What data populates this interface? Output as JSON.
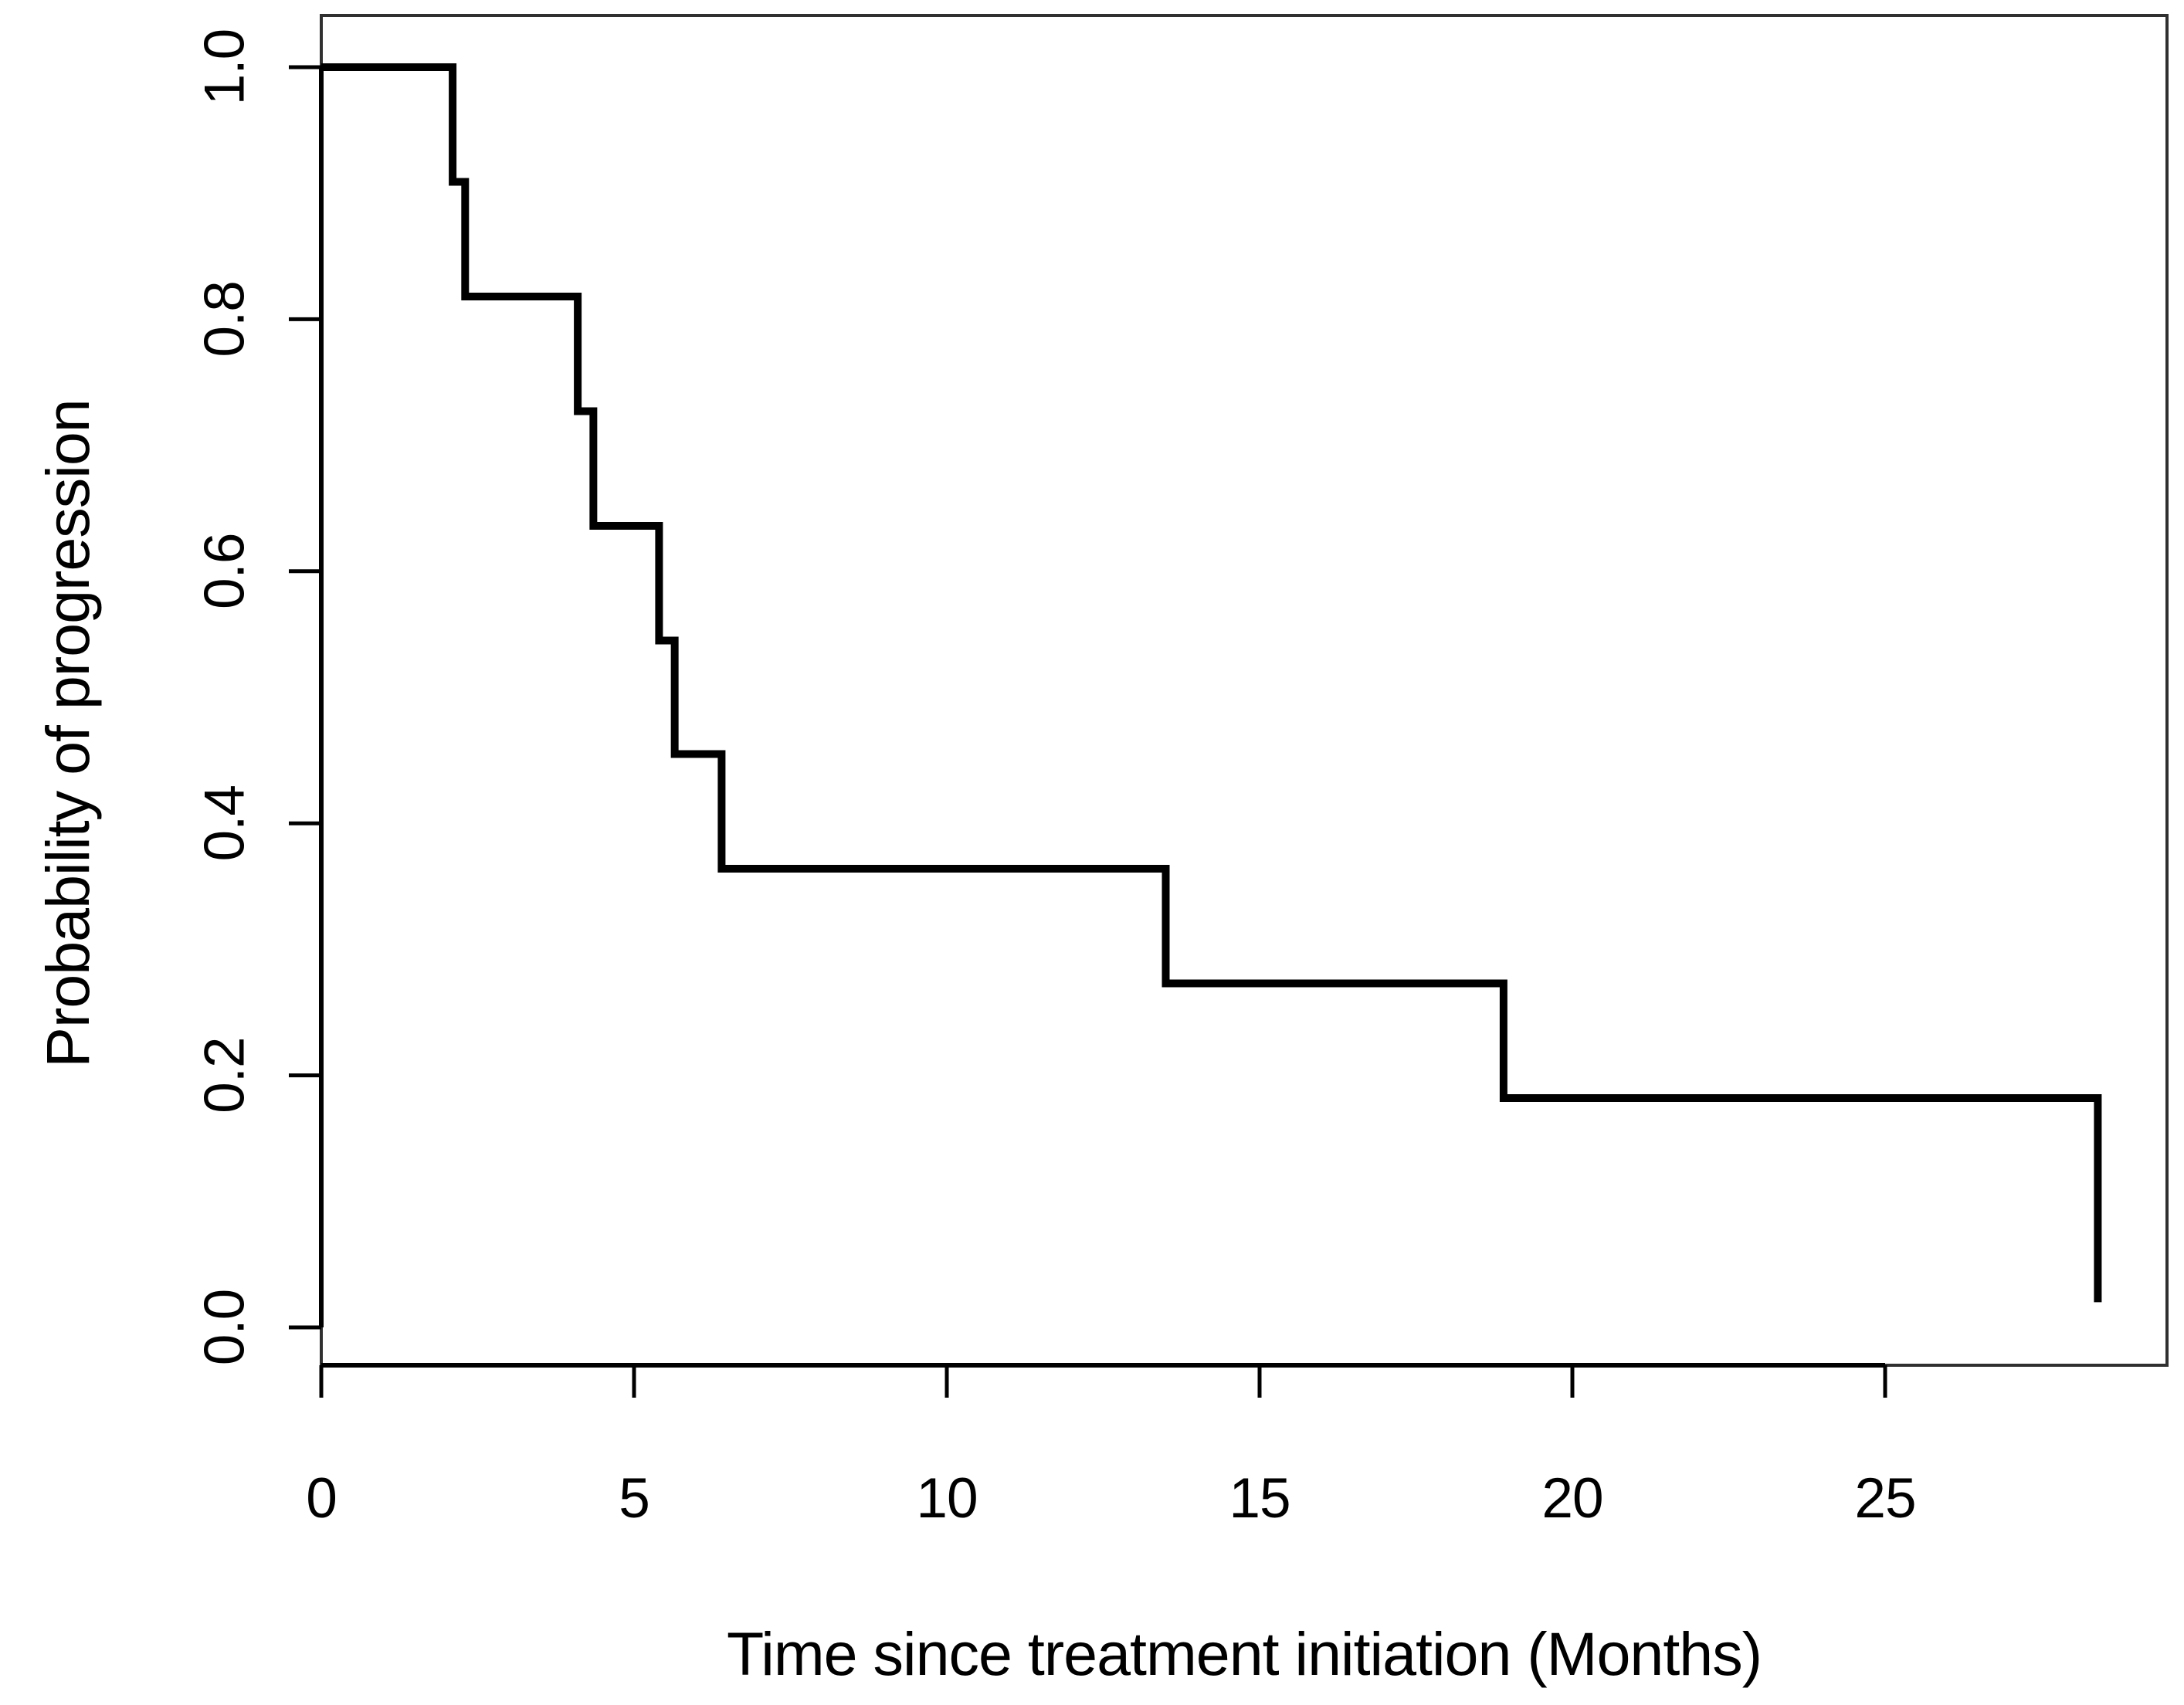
{
  "figure": {
    "background": "#ffffff",
    "title": ""
  },
  "chart_data": {
    "type": "line",
    "subtype": "kaplan_meier_step_function",
    "title": "",
    "xlabel": "Time since treatment initiation (Months)",
    "ylabel": "Probability of progression",
    "x_tick_values": [
      0,
      5,
      10,
      15,
      20,
      25
    ],
    "x_tick_labels": [
      "0",
      "5",
      "10",
      "15",
      "20",
      "25"
    ],
    "y_tick_values": [
      0.0,
      0.2,
      0.4,
      0.6,
      0.8,
      1.0
    ],
    "y_tick_labels": [
      "0.0",
      "0.2",
      "0.4",
      "0.6",
      "0.8",
      "1.0"
    ],
    "xlim": [
      0,
      29.5
    ],
    "ylim": [
      -0.03,
      1.04
    ],
    "grid": false,
    "legend": false,
    "axis_color": "#000000",
    "box_color": "#303030",
    "series": [
      {
        "name": "probability-of-progression-curve",
        "color": "#000000",
        "line_width": 10,
        "start": {
          "t": 0,
          "s": 1.0
        },
        "steps": [
          {
            "t": 2.1,
            "s": 0.909
          },
          {
            "t": 2.3,
            "s": 0.818
          },
          {
            "t": 4.1,
            "s": 0.727
          },
          {
            "t": 4.35,
            "s": 0.636
          },
          {
            "t": 5.4,
            "s": 0.545
          },
          {
            "t": 5.65,
            "s": 0.455
          },
          {
            "t": 6.4,
            "s": 0.364
          },
          {
            "t": 13.5,
            "s": 0.273
          },
          {
            "t": 18.9,
            "s": 0.182
          },
          {
            "t": 28.4,
            "s": 0.02
          }
        ]
      }
    ]
  }
}
